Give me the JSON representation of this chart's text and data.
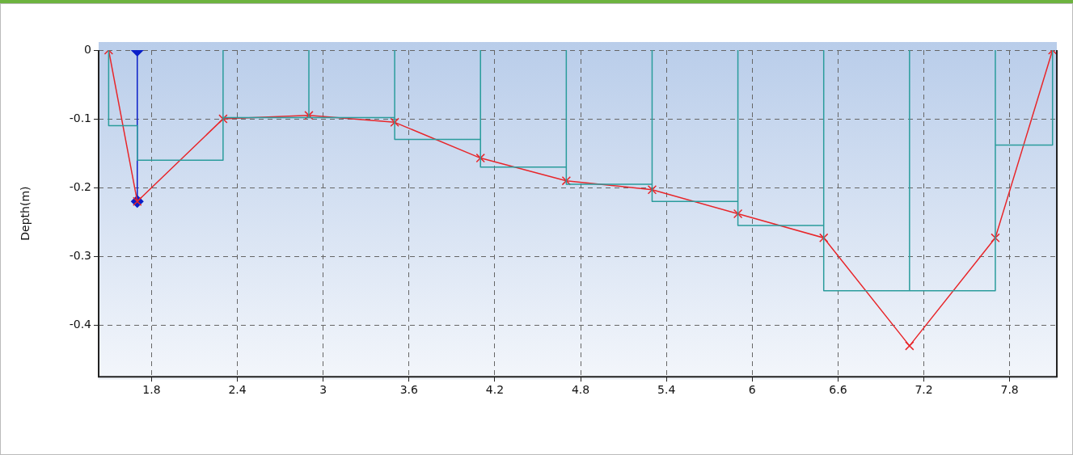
{
  "chart_data": {
    "type": "line",
    "ylabel": "Depth(m)",
    "xlim": [
      1.43,
      8.13
    ],
    "ylim": [
      -0.475,
      0
    ],
    "xticks": [
      1.8,
      2.4,
      3,
      3.6,
      4.2,
      4.8,
      5.4,
      6,
      6.6,
      7.2,
      7.8
    ],
    "yticks": [
      0,
      -0.1,
      -0.2,
      -0.3,
      -0.4
    ],
    "grid": true,
    "legend": false,
    "series": [
      {
        "type": "line",
        "color": "#2a9c9c",
        "marker": "none",
        "line_style": "solid",
        "x": [
          1.5,
          1.5,
          1.7,
          1.7,
          2.3,
          2.3,
          2.3,
          2.9,
          2.9,
          2.9,
          3.5,
          3.5,
          3.5,
          4.1,
          4.1,
          4.1,
          4.7,
          4.7,
          4.7,
          5.3,
          5.3,
          5.3,
          5.9,
          5.9,
          5.9,
          6.5,
          6.5,
          6.5,
          7.1,
          7.1,
          7.1,
          7.7,
          7.7,
          7.7,
          8.1,
          8.1
        ],
        "values": [
          0,
          -0.11,
          -0.11,
          -0.16,
          -0.16,
          0,
          -0.098,
          -0.098,
          0,
          -0.098,
          -0.098,
          0,
          -0.13,
          -0.13,
          0,
          -0.17,
          -0.17,
          0,
          -0.195,
          -0.195,
          0,
          -0.22,
          -0.22,
          0,
          -0.255,
          -0.255,
          0,
          -0.35,
          -0.35,
          0,
          -0.35,
          -0.35,
          0,
          -0.138,
          -0.138,
          0
        ]
      },
      {
        "type": "line",
        "color": "#e8262a",
        "marker": "cross",
        "line_style": "solid",
        "x": [
          1.5,
          1.7,
          2.3,
          2.9,
          3.5,
          4.1,
          4.7,
          5.3,
          5.9,
          6.5,
          7.1,
          7.7,
          8.1
        ],
        "values": [
          0,
          -0.22,
          -0.1,
          -0.095,
          -0.105,
          -0.157,
          -0.19,
          -0.203,
          -0.238,
          -0.273,
          -0.43,
          -0.273,
          0
        ]
      },
      {
        "type": "line",
        "color": "#0a1fc8",
        "marker": "diamond",
        "line_style": "solid",
        "x": [
          1.7,
          1.7
        ],
        "values": [
          0,
          -0.22
        ]
      }
    ]
  }
}
